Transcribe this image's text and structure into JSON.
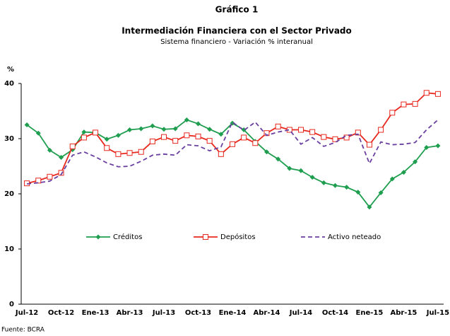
{
  "chart_data": {
    "type": "line",
    "title": "Gráfico 1",
    "subtitle": "Intermediación Financiera con el Sector Privado",
    "subtitle2": "Sistema financiero - Variación % interanual",
    "y_label": "%",
    "source": "Fuente: BCRA",
    "categories": [
      "Jul-12",
      null,
      null,
      "Oct-12",
      null,
      null,
      "Ene-13",
      null,
      null,
      "Abr-13",
      null,
      null,
      "Jul-13",
      null,
      null,
      "Oct-13",
      null,
      null,
      "Ene-14",
      null,
      null,
      "Abr-14",
      null,
      null,
      "Jul-14",
      null,
      null,
      "Oct-14",
      null,
      null,
      "Ene-15",
      null,
      null,
      "Abr-15",
      null,
      null,
      "Jul-15"
    ],
    "series": [
      {
        "name": "Créditos",
        "color": "#1f9e4f",
        "marker": "diamond",
        "dashed": false,
        "values": [
          32.5,
          31.0,
          27.9,
          26.6,
          28.0,
          31.2,
          31.1,
          29.9,
          30.6,
          31.6,
          31.8,
          32.3,
          31.7,
          31.8,
          33.4,
          32.7,
          31.7,
          30.8,
          32.8,
          31.6,
          29.5,
          27.6,
          26.3,
          24.6,
          24.2,
          23.0,
          22.0,
          21.5,
          21.2,
          20.3,
          17.6,
          20.2,
          22.7,
          23.9,
          25.8,
          28.4,
          28.7
        ]
      },
      {
        "name": "Depósitos",
        "color": "#e8281e",
        "marker": "square",
        "dashed": false,
        "values": [
          21.9,
          22.4,
          23.1,
          23.8,
          28.6,
          30.2,
          31.1,
          28.3,
          27.2,
          27.4,
          27.6,
          29.5,
          30.3,
          29.6,
          30.6,
          30.4,
          29.6,
          27.2,
          29.0,
          30.2,
          29.2,
          31.0,
          32.2,
          31.6,
          31.6,
          31.2,
          30.3,
          29.9,
          30.2,
          31.1,
          28.9,
          31.6,
          34.7,
          36.2,
          36.3,
          38.3,
          38.1
        ]
      },
      {
        "name": "Activo neteado",
        "color": "#6a3fa0",
        "marker": null,
        "dashed": true,
        "values": [
          21.8,
          22.0,
          22.3,
          23.5,
          27.0,
          27.6,
          26.7,
          25.6,
          24.9,
          25.0,
          25.9,
          27.0,
          27.2,
          27.0,
          28.9,
          28.7,
          27.8,
          28.5,
          33.0,
          31.5,
          33.0,
          30.6,
          31.2,
          31.6,
          29.0,
          30.2,
          28.6,
          29.3,
          30.6,
          30.8,
          25.5,
          29.4,
          28.9,
          29.0,
          29.3,
          31.6,
          33.4
        ]
      }
    ],
    "ylim": [
      0,
      40
    ],
    "yticks": [
      0,
      10,
      20,
      30,
      40
    ],
    "grid": false
  }
}
